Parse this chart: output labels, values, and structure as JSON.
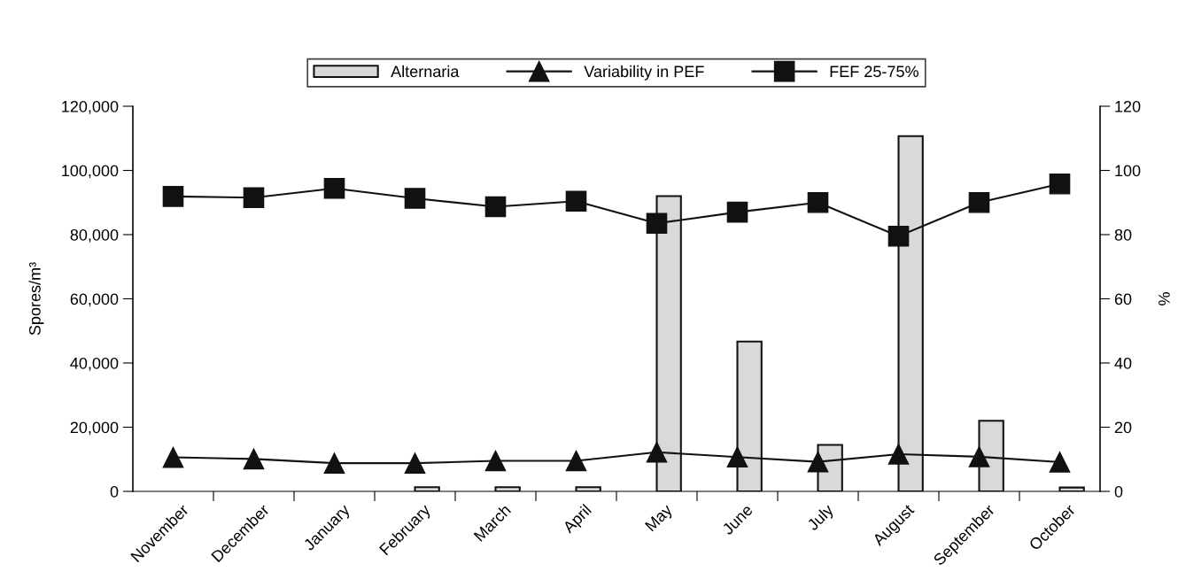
{
  "chart_data": {
    "type": "bar",
    "ylabel": "Spores/m³",
    "y2label": "%",
    "categories": [
      "November",
      "December",
      "January",
      "February",
      "March",
      "April",
      "May",
      "June",
      "July",
      "August",
      "September",
      "October"
    ],
    "series": [
      {
        "name": "Alternaria",
        "color": "#d9d9d9",
        "values": [
          null,
          null,
          null,
          1300,
          1300,
          1300,
          92000,
          46700,
          14500,
          110700,
          22000,
          1200
        ]
      },
      {
        "name": "Variability in PEF",
        "type": "line",
        "axis": "y2",
        "color": "#111111",
        "marker": "triangle",
        "values": [
          10.6,
          10.1,
          8.8,
          8.8,
          9.5,
          9.5,
          12.2,
          10.7,
          9.2,
          11.6,
          10.8,
          9.1
        ]
      },
      {
        "name": "FEF 25-75%",
        "type": "line",
        "axis": "y2",
        "color": "#111111",
        "marker": "square",
        "values": [
          91.9,
          91.5,
          94.4,
          91.3,
          88.7,
          90.4,
          83.5,
          87,
          90,
          79.5,
          90,
          95.8
        ]
      }
    ],
    "ylim": [
      0,
      120000
    ],
    "yticks": [
      {
        "value": 0,
        "label": "0"
      },
      {
        "value": 20000,
        "label": "20,000"
      },
      {
        "value": 40000,
        "label": "40,000"
      },
      {
        "value": 60000,
        "label": "60,000"
      },
      {
        "value": 80000,
        "label": "80,000"
      },
      {
        "value": 100000,
        "label": "100,000"
      },
      {
        "value": 120000,
        "label": "120,000"
      }
    ],
    "y2lim": [
      0,
      120
    ],
    "y2ticks": [
      0,
      20,
      40,
      60,
      80,
      100,
      120
    ],
    "legend": "top",
    "grid": false
  }
}
